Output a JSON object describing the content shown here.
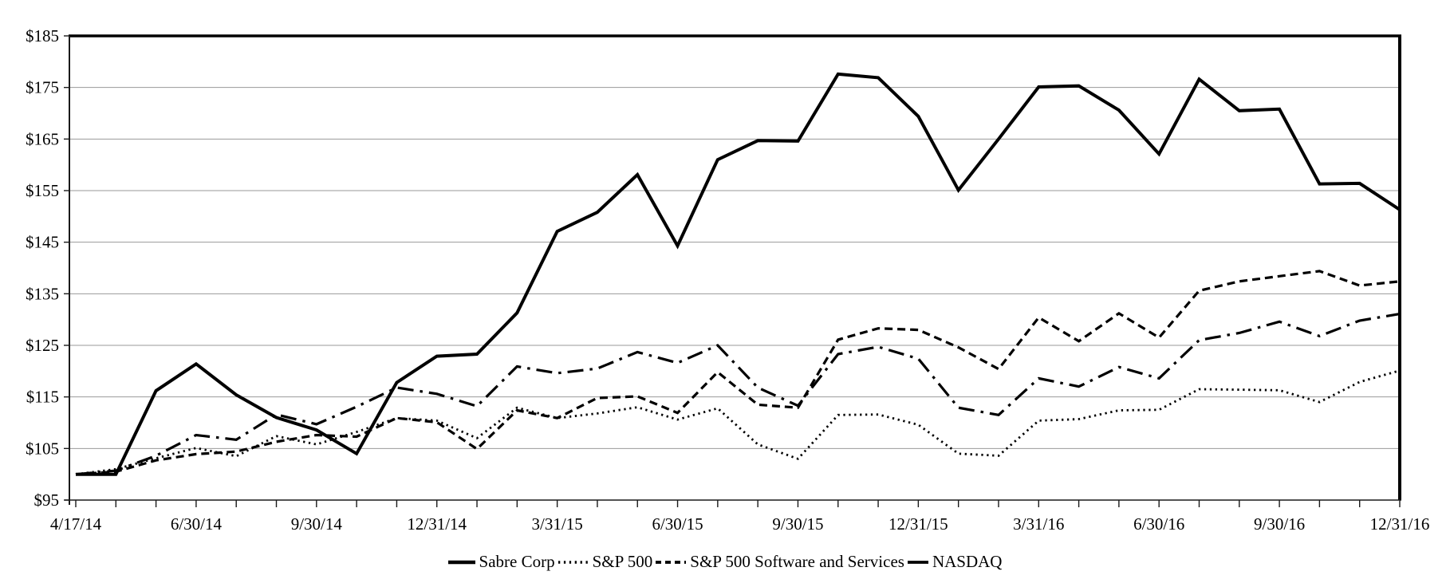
{
  "chart_data": {
    "type": "line",
    "title": "",
    "xlabel": "",
    "ylabel": "",
    "grid": "horizontal",
    "legend_position": "bottom-center",
    "background": "#ffffff",
    "colors": {
      "line": "#000000",
      "grid": "#9a9a9a",
      "frame": "#1a1a1a",
      "text": "#000000"
    },
    "y_axis": {
      "min": 95,
      "max": 185,
      "step": 10,
      "prefix": "$",
      "tick_labels": [
        "$95",
        "$105",
        "$115",
        "$125",
        "$135",
        "$145",
        "$155",
        "$165",
        "$175",
        "$185"
      ]
    },
    "x_labels": [
      "4/17/14",
      "4/30/14",
      "5/31/14",
      "6/30/14",
      "7/31/14",
      "8/31/14",
      "9/30/14",
      "10/31/14",
      "11/30/14",
      "12/31/14",
      "1/31/15",
      "2/28/15",
      "3/31/15",
      "4/30/15",
      "5/31/15",
      "6/30/15",
      "7/31/15",
      "8/31/15",
      "9/30/15",
      "10/31/15",
      "11/30/15",
      "12/31/15",
      "1/31/16",
      "2/29/16",
      "3/31/16",
      "4/30/16",
      "5/31/16",
      "6/30/16",
      "7/31/16",
      "8/31/16",
      "9/30/16",
      "10/31/16",
      "11/30/16",
      "12/31/16"
    ],
    "x_tick_label_indices": [
      0,
      3,
      6,
      9,
      12,
      15,
      18,
      21,
      24,
      27,
      30,
      33
    ],
    "x_tick_label_values": [
      "4/17/14",
      "6/30/14",
      "9/30/14",
      "12/31/14",
      "3/31/15",
      "6/30/15",
      "9/30/15",
      "12/31/15",
      "3/31/16",
      "6/30/16",
      "9/30/16",
      "12/31/16"
    ],
    "series": [
      {
        "name": "Sabre Corp",
        "style": "solid",
        "values": [
          100,
          100,
          116.2,
          121.4,
          115.4,
          111,
          108.6,
          104,
          117.8,
          122.9,
          123.3,
          131.3,
          147.1,
          150.8,
          158.1,
          144.3,
          161,
          164.7,
          164.6,
          177.6,
          176.9,
          169.4,
          155.1,
          165,
          175.1,
          175.3,
          170.6,
          162.1,
          176.6,
          170.5,
          170.8,
          156.3,
          156.4,
          151.3
        ]
      },
      {
        "name": "S&P 500",
        "style": "dotted",
        "values": [
          100,
          101,
          103.1,
          105.1,
          103.5,
          107.4,
          105.8,
          108.2,
          110.9,
          110.4,
          107,
          112.9,
          110.9,
          111.8,
          113,
          110.6,
          112.8,
          105.8,
          103,
          111.5,
          111.6,
          109.6,
          104,
          103.6,
          110.4,
          110.7,
          112.4,
          112.5,
          116.5,
          116.4,
          116.3,
          114,
          117.9,
          120.1
        ]
      },
      {
        "name": "S&P 500 Software and Services",
        "style": "dashed",
        "values": [
          100,
          100.5,
          102.7,
          103.9,
          104.4,
          106.3,
          107.6,
          107.3,
          110.9,
          110.1,
          104.9,
          112.4,
          110.9,
          114.8,
          115.1,
          111.9,
          119.8,
          113.5,
          112.9,
          126.1,
          128.3,
          128,
          124.6,
          120.4,
          130.4,
          125.8,
          131.2,
          126.5,
          135.6,
          137.4,
          138.4,
          139.4,
          136.6,
          137.4
        ]
      },
      {
        "name": "NASDAQ",
        "style": "dashdot",
        "values": [
          100,
          100.7,
          103.6,
          107.6,
          106.7,
          111.6,
          109.7,
          113.1,
          116.8,
          115.6,
          113.2,
          120.9,
          119.6,
          120.5,
          123.7,
          121.6,
          125,
          116.8,
          113.3,
          123.3,
          124.7,
          122.4,
          112.9,
          111.5,
          118.6,
          117,
          120.8,
          118.6,
          126,
          127.4,
          129.6,
          126.8,
          129.8,
          131.1
        ]
      }
    ]
  }
}
